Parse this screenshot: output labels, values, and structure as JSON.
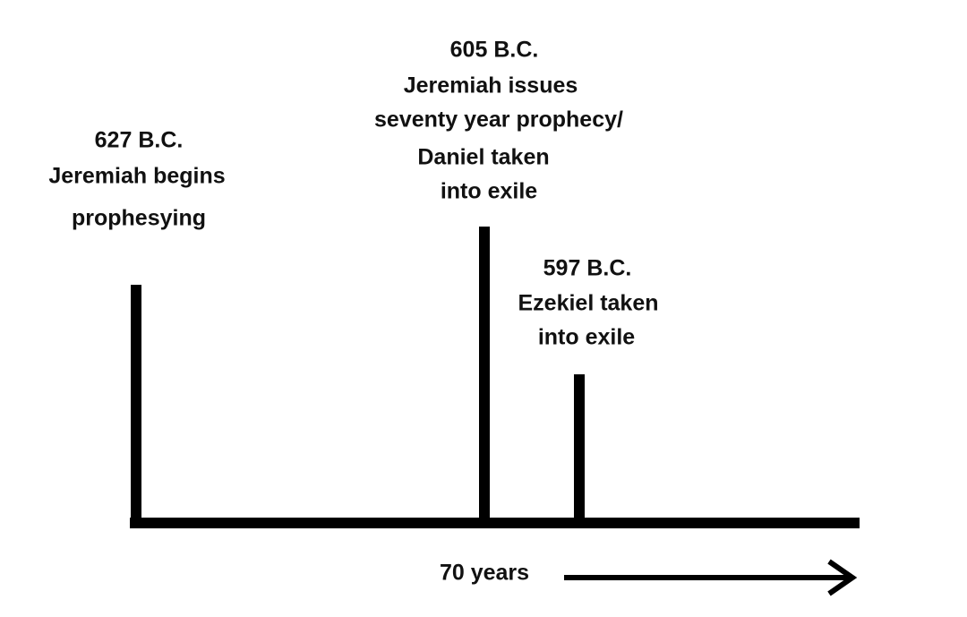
{
  "events": [
    {
      "date": "627 B.C.",
      "lines": [
        "Jeremiah begins",
        "prophesying"
      ]
    },
    {
      "date": "605 B.C.",
      "lines": [
        "Jeremiah issues",
        "seventy year prophecy/",
        "Daniel taken",
        "into exile"
      ]
    },
    {
      "date": "597 B.C.",
      "lines": [
        "Ezekiel taken",
        "into exile"
      ]
    }
  ],
  "span_label": "70 years"
}
